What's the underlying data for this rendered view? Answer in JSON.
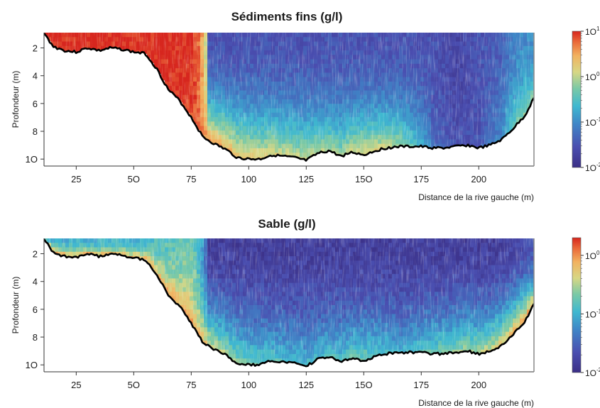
{
  "chart_data": [
    {
      "type": "heatmap",
      "title": "Sédiments fins (g/l)",
      "xlabel": "Distance de la rive gauche (m)",
      "ylabel": "Profondeur (m)",
      "xlim": [
        11,
        224
      ],
      "ylim": [
        10.5,
        0.9
      ],
      "xticks": [
        25,
        50,
        75,
        100,
        125,
        150,
        175,
        200
      ],
      "yticks": [
        2,
        4,
        6,
        8,
        10
      ],
      "xtick_labels": [
        "25",
        "5O",
        "75",
        "100",
        "125",
        "15O",
        "175",
        "200"
      ],
      "ytick_labels": [
        "2",
        "4",
        "6",
        "8",
        "1O"
      ],
      "colorbar": {
        "scale": "log",
        "range": [
          0.01,
          10
        ],
        "ticks": [
          10,
          1,
          0.1,
          0.01
        ],
        "labels": [
          {
            "base": "1O",
            "exp": "1"
          },
          {
            "base": "1O",
            "exp": "0"
          },
          {
            "base": "1O",
            "exp": "-1"
          },
          {
            "base": "1O",
            "exp": "-2"
          }
        ]
      },
      "bed_profile": {
        "x": [
          11,
          15,
          20,
          25,
          30,
          35,
          40,
          45,
          50,
          55,
          60,
          65,
          70,
          75,
          80,
          85,
          90,
          95,
          100,
          105,
          110,
          115,
          120,
          125,
          130,
          135,
          140,
          145,
          150,
          155,
          160,
          165,
          170,
          175,
          180,
          185,
          190,
          195,
          200,
          205,
          210,
          215,
          220,
          224
        ],
        "depth": [
          0.95,
          1.9,
          2.2,
          2.3,
          2.0,
          2.2,
          2.0,
          2.1,
          2.3,
          2.4,
          3.5,
          5.0,
          5.8,
          7.0,
          8.4,
          8.9,
          9.3,
          9.9,
          10.0,
          10.0,
          9.7,
          9.8,
          9.9,
          10.1,
          9.6,
          9.4,
          9.8,
          9.5,
          9.7,
          9.4,
          9.2,
          9.1,
          9.1,
          9.1,
          9.2,
          9.2,
          9.1,
          9.0,
          9.2,
          9.0,
          8.6,
          7.8,
          6.9,
          5.6
        ]
      },
      "profile_columns": {
        "x": [
          15,
          30,
          50,
          65,
          75,
          82,
          90,
          100,
          110,
          120,
          130,
          140,
          150,
          158,
          165,
          172,
          180,
          190,
          200,
          210,
          218
        ],
        "surface_conc": [
          10,
          10,
          10,
          10,
          10,
          0.03,
          0.03,
          0.03,
          0.03,
          0.03,
          0.03,
          0.03,
          0.03,
          0.03,
          0.03,
          0.03,
          0.03,
          0.02,
          0.03,
          0.04,
          0.1
        ],
        "bed_conc": [
          10,
          10,
          10,
          10,
          8,
          4,
          3,
          2,
          1.5,
          1.2,
          1.0,
          0.8,
          1.5,
          1.2,
          0.8,
          0.3,
          0.05,
          0.03,
          0.03,
          0.1,
          0.6
        ]
      }
    },
    {
      "type": "heatmap",
      "title": "Sable (g/l)",
      "xlabel": "Distance de la rive gauche (m)",
      "ylabel": "Profondeur (m)",
      "xlim": [
        11,
        224
      ],
      "ylim": [
        10.5,
        0.9
      ],
      "xticks": [
        25,
        50,
        75,
        100,
        125,
        150,
        175,
        200
      ],
      "yticks": [
        2,
        4,
        6,
        8,
        10
      ],
      "xtick_labels": [
        "25",
        "5O",
        "75",
        "100",
        "125",
        "15O",
        "175",
        "200"
      ],
      "ytick_labels": [
        "2",
        "4",
        "6",
        "8",
        "1O"
      ],
      "colorbar": {
        "scale": "log",
        "range": [
          0.01,
          2
        ],
        "ticks": [
          1,
          0.1,
          0.01
        ],
        "labels": [
          {
            "base": "1O",
            "exp": "0"
          },
          {
            "base": "1O",
            "exp": "-1"
          },
          {
            "base": "1O",
            "exp": "-2"
          }
        ]
      },
      "bed_profile": {
        "x": [
          11,
          15,
          20,
          25,
          30,
          35,
          40,
          45,
          50,
          55,
          60,
          65,
          70,
          75,
          80,
          85,
          90,
          95,
          100,
          105,
          110,
          115,
          120,
          125,
          130,
          135,
          140,
          145,
          150,
          155,
          160,
          165,
          170,
          175,
          180,
          185,
          190,
          195,
          200,
          205,
          210,
          215,
          220,
          224
        ],
        "depth": [
          0.95,
          1.9,
          2.2,
          2.3,
          2.0,
          2.2,
          2.0,
          2.1,
          2.3,
          2.4,
          3.5,
          5.0,
          5.8,
          7.0,
          8.4,
          8.9,
          9.3,
          9.9,
          10.0,
          10.0,
          9.7,
          9.8,
          9.9,
          10.1,
          9.6,
          9.4,
          9.8,
          9.5,
          9.7,
          9.4,
          9.2,
          9.1,
          9.1,
          9.1,
          9.2,
          9.2,
          9.1,
          9.0,
          9.2,
          9.0,
          8.6,
          7.8,
          6.9,
          5.6
        ]
      },
      "profile_columns": {
        "x": [
          15,
          30,
          50,
          65,
          75,
          82,
          90,
          100,
          110,
          120,
          130,
          140,
          150,
          158,
          165,
          172,
          180,
          190,
          200,
          210,
          218
        ],
        "surface_conc": [
          0.1,
          0.1,
          0.1,
          0.15,
          0.2,
          0.015,
          0.015,
          0.015,
          0.015,
          0.015,
          0.015,
          0.015,
          0.015,
          0.015,
          0.015,
          0.015,
          0.015,
          0.015,
          0.015,
          0.015,
          0.02
        ],
        "bed_conc": [
          1.0,
          0.8,
          0.7,
          0.9,
          0.8,
          0.5,
          0.3,
          0.2,
          0.15,
          0.12,
          0.12,
          0.15,
          0.2,
          0.15,
          0.1,
          0.12,
          0.2,
          0.25,
          0.3,
          0.5,
          0.9
        ]
      }
    }
  ]
}
